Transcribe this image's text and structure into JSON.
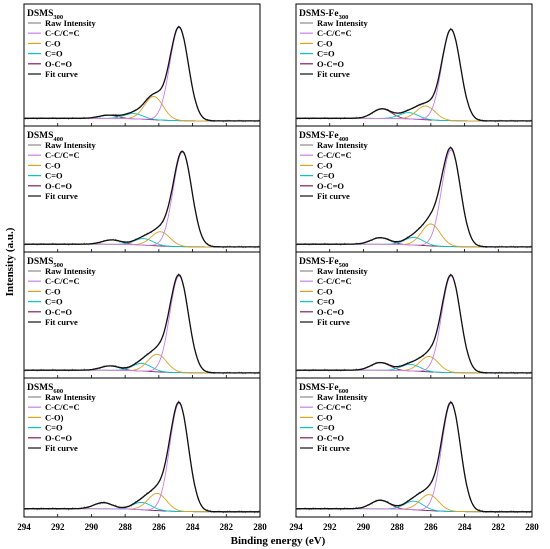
{
  "chart_data": {
    "type": "line",
    "xlabel": "Binding energy (eV)",
    "ylabel": "Intensity (a.u.)",
    "xlim": [
      294,
      280
    ],
    "x_ticks": [
      294,
      292,
      290,
      288,
      286,
      284,
      282,
      280
    ],
    "colors": {
      "Raw Intensity": "#8a8a8a",
      "C-C/C=C": "#c97ef0",
      "C-O": "#e0a020",
      "C=O": "#00c8c8",
      "O-C=O": "#8b1a5a",
      "Fit curve": "#111111"
    },
    "panels": [
      {
        "id": "dsms300",
        "title_main": "DSMS",
        "title_sub": "300",
        "legend": [
          "Raw Intensity",
          "C-C/C=C",
          "C-O",
          "C=O",
          "O-C=O",
          "Fit curve"
        ],
        "peaks": [
          {
            "component": "C-C/C=C",
            "center": 284.8,
            "height": 0.88
          },
          {
            "component": "C-O",
            "center": 286.3,
            "height": 0.22
          },
          {
            "component": "C=O",
            "center": 287.5,
            "height": 0.05
          },
          {
            "component": "O-C=O",
            "center": 289.0,
            "height": 0.03
          }
        ]
      },
      {
        "id": "dsmsfe300",
        "title_main": "DSMS-Fe",
        "title_sub": "300",
        "legend": [
          "Raw Intensity",
          "C-C/C=C",
          "C-O",
          "C=O",
          "O-C=O",
          "Fit curve"
        ],
        "peaks": [
          {
            "component": "C-C/C=C",
            "center": 284.8,
            "height": 0.86
          },
          {
            "component": "C-O",
            "center": 286.3,
            "height": 0.13
          },
          {
            "component": "C=O",
            "center": 287.3,
            "height": 0.06
          },
          {
            "component": "O-C=O",
            "center": 288.9,
            "height": 0.09
          }
        ]
      },
      {
        "id": "dsms400",
        "title_main": "DSMS",
        "title_sub": "400",
        "legend": [
          "Raw Intensity",
          "C-C/C=C",
          "C-O",
          "C=O",
          "O-C=O",
          "Fit curve"
        ],
        "peaks": [
          {
            "component": "C-C/C=C",
            "center": 284.6,
            "height": 0.86
          },
          {
            "component": "C-O",
            "center": 285.9,
            "height": 0.13
          },
          {
            "component": "C=O",
            "center": 286.9,
            "height": 0.06
          },
          {
            "component": "O-C=O",
            "center": 288.8,
            "height": 0.04
          }
        ]
      },
      {
        "id": "dsmsfe400",
        "title_main": "DSMS-Fe",
        "title_sub": "400",
        "legend": [
          "Raw Intensity",
          "C-C/C=C",
          "C-O",
          "C=O",
          "O-C=O",
          "Fit curve"
        ],
        "peaks": [
          {
            "component": "C-C/C=C",
            "center": 284.8,
            "height": 0.88
          },
          {
            "component": "C-O",
            "center": 286.0,
            "height": 0.2
          },
          {
            "component": "C=O",
            "center": 287.0,
            "height": 0.07
          },
          {
            "component": "O-C=O",
            "center": 289.0,
            "height": 0.06
          }
        ]
      },
      {
        "id": "dsms500",
        "title_main": "DSMS",
        "title_sub": "500",
        "legend": [
          "Raw Intensity",
          "C-C/C=C",
          "C-O",
          "C=O",
          "O-C=O",
          "Fit curve"
        ],
        "peaks": [
          {
            "component": "C-C/C=C",
            "center": 284.8,
            "height": 0.88
          },
          {
            "component": "C-O",
            "center": 286.1,
            "height": 0.16
          },
          {
            "component": "C=O",
            "center": 287.0,
            "height": 0.07
          },
          {
            "component": "O-C=O",
            "center": 288.9,
            "height": 0.04
          }
        ]
      },
      {
        "id": "dsmsfe500",
        "title_main": "DSMS-Fe",
        "title_sub": "500",
        "legend": [
          "Raw Intensity",
          "C-C/C=C",
          "C-O",
          "C=O",
          "O-C=O",
          "Fit curve"
        ],
        "peaks": [
          {
            "component": "C-C/C=C",
            "center": 284.8,
            "height": 0.88
          },
          {
            "component": "C-O",
            "center": 286.1,
            "height": 0.14
          },
          {
            "component": "C=O",
            "center": 287.2,
            "height": 0.06
          },
          {
            "component": "O-C=O",
            "center": 289.0,
            "height": 0.07
          }
        ]
      },
      {
        "id": "dsms600",
        "title_main": "DSMS",
        "title_sub": "600",
        "legend": [
          "Raw Intensity",
          "C-C/C=C",
          "C-O)",
          "C=O",
          "O-C=O",
          "Fit curve"
        ],
        "peaks": [
          {
            "component": "C-C/C=C",
            "center": 284.8,
            "height": 0.88
          },
          {
            "component": "C-O",
            "center": 286.1,
            "height": 0.14
          },
          {
            "component": "C=O",
            "center": 287.0,
            "height": 0.06
          },
          {
            "component": "O-C=O",
            "center": 289.3,
            "height": 0.05
          }
        ]
      },
      {
        "id": "dsmsfe600",
        "title_main": "DSMS-Fe",
        "title_sub": "600",
        "legend": [
          "Raw Intensity",
          "C-C/C=C",
          "C-O",
          "C=O",
          "O-C=O",
          "Fit curve"
        ],
        "peaks": [
          {
            "component": "C-C/C=C",
            "center": 284.8,
            "height": 0.88
          },
          {
            "component": "C-O",
            "center": 286.1,
            "height": 0.13
          },
          {
            "component": "C=O",
            "center": 287.0,
            "height": 0.07
          },
          {
            "component": "O-C=O",
            "center": 289.0,
            "height": 0.07
          }
        ]
      }
    ]
  }
}
